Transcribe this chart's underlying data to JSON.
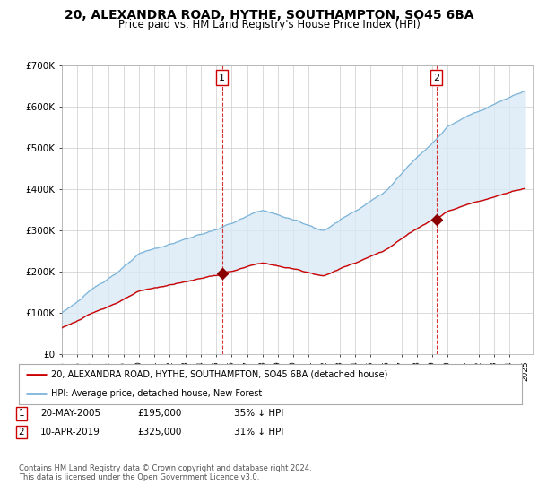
{
  "title": "20, ALEXANDRA ROAD, HYTHE, SOUTHAMPTON, SO45 6BA",
  "subtitle": "Price paid vs. HM Land Registry's House Price Index (HPI)",
  "title_fontsize": 10,
  "subtitle_fontsize": 8.5,
  "ylim": [
    0,
    700000
  ],
  "yticks": [
    0,
    100000,
    200000,
    300000,
    400000,
    500000,
    600000,
    700000
  ],
  "ytick_labels": [
    "£0",
    "£100K",
    "£200K",
    "£300K",
    "£400K",
    "£500K",
    "£600K",
    "£700K"
  ],
  "hpi_color": "#7ab3d9",
  "hpi_fill_color": "#daeaf5",
  "price_color": "#cc0000",
  "marker_color": "#8b0000",
  "vline_color": "#cc0000",
  "legend_entry1": "20, ALEXANDRA ROAD, HYTHE, SOUTHAMPTON, SO45 6BA (detached house)",
  "legend_entry2": "HPI: Average price, detached house, New Forest",
  "note1_date": "20-MAY-2005",
  "note1_price": "£195,000",
  "note1_hpi": "35% ↓ HPI",
  "note2_date": "10-APR-2019",
  "note2_price": "£325,000",
  "note2_hpi": "31% ↓ HPI",
  "footer": "Contains HM Land Registry data © Crown copyright and database right 2024.\nThis data is licensed under the Open Government Licence v3.0.",
  "background_color": "#ffffff",
  "grid_color": "#cccccc",
  "sale1_year": 2005.38,
  "sale1_price": 195000,
  "sale2_year": 2019.27,
  "sale2_price": 325000
}
